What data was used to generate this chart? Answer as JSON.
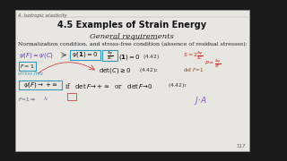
{
  "bg_outer": "#1a1a1a",
  "bg_slide": "#e8e6e0",
  "header_text": "4. Isotropic elasticity",
  "title": "4.5 Examples of Strain Energy",
  "subtitle": "General requirements",
  "line1": "Normalization condition, and stress-free condition (absence of residual stresses):",
  "page_number": "117",
  "header_fontsize": 3.8,
  "title_fontsize": 7.0,
  "subtitle_fontsize": 6.0,
  "body_fontsize": 4.5,
  "math_fontsize": 5.0,
  "small_fontsize": 4.2
}
